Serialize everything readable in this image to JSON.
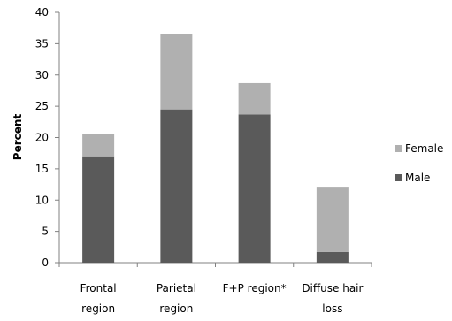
{
  "chart_data": {
    "type": "bar",
    "stacked": true,
    "categories": [
      [
        "Frontal",
        "region"
      ],
      [
        "Parietal",
        "region"
      ],
      [
        "F+P region*"
      ],
      [
        "Diffuse hair",
        "loss"
      ]
    ],
    "series": [
      {
        "name": "Male",
        "color": "#5a5a5a",
        "values": [
          17.0,
          24.5,
          23.7,
          1.7
        ]
      },
      {
        "name": "Female",
        "color": "#b0b0b0",
        "values": [
          3.5,
          12.0,
          5.0,
          10.3
        ]
      }
    ],
    "ylabel": "Percent",
    "ylim": [
      0,
      40
    ],
    "yticks": [
      0,
      5,
      10,
      15,
      20,
      25,
      30,
      35,
      40
    ],
    "grid": false,
    "legend": {
      "placement": "right",
      "order": [
        "Female",
        "Male"
      ]
    }
  }
}
